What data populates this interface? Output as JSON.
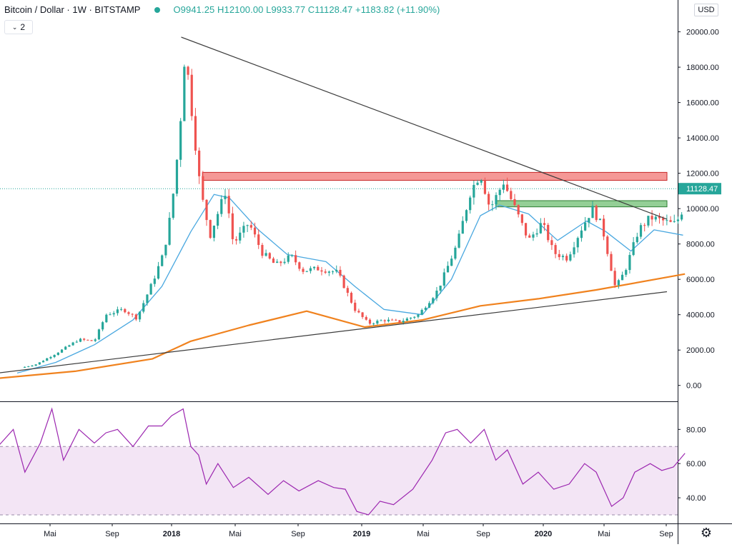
{
  "header": {
    "symbol": "Bitcoin / Dollar · 1W · BITSTAMP",
    "ohlc": {
      "open": "O9941.25",
      "high": "H12100.00",
      "low": "L9933.77",
      "close": "C11128.47",
      "change": "+1183.82 (+11.90%)"
    },
    "studies_count": "2"
  },
  "currency_label": "USD",
  "settings_icon": "gear-icon",
  "colors": {
    "up": "#26a69a",
    "down": "#ef5350",
    "ma_short": "#4aa8e0",
    "ma_long": "#f0821e",
    "trendline": "#3c3c3c",
    "rsi": "#9c27b0",
    "rsi_band": "#f3e5f5",
    "resistance_zone": "#ef5350",
    "support_zone": "#4caf50",
    "last_price": "#26a69a"
  },
  "chart_data": [
    {
      "type": "candlestick",
      "title": "Bitcoin / Dollar · 1W · BITSTAMP",
      "x_ticks": [
        "Mai",
        "Sep",
        "2018",
        "Mai",
        "Sep",
        "2019",
        "Mai",
        "Sep",
        "2020",
        "Mai",
        "Sep"
      ],
      "y_ticks": [
        "0.00",
        "2000.00",
        "4000.00",
        "6000.00",
        "8000.00",
        "10000.00",
        "12000.00",
        "14000.00",
        "16000.00",
        "18000.00",
        "20000.00"
      ],
      "ylim": [
        -900,
        21800
      ],
      "last_price": 11128.47,
      "last_price_label": "11128.47",
      "price_path": [
        [
          2017.12,
          1000
        ],
        [
          2017.2,
          1200
        ],
        [
          2017.3,
          1800
        ],
        [
          2017.42,
          2600
        ],
        [
          2017.5,
          2500
        ],
        [
          2017.56,
          4000
        ],
        [
          2017.65,
          4300
        ],
        [
          2017.72,
          3800
        ],
        [
          2017.8,
          5800
        ],
        [
          2017.86,
          7500
        ],
        [
          2017.9,
          10000
        ],
        [
          2017.94,
          14000
        ],
        [
          2017.97,
          19000
        ],
        [
          2018.02,
          14000
        ],
        [
          2018.05,
          11000
        ],
        [
          2018.1,
          8500
        ],
        [
          2018.18,
          11000
        ],
        [
          2018.22,
          8000
        ],
        [
          2018.3,
          9200
        ],
        [
          2018.37,
          7500
        ],
        [
          2018.44,
          6800
        ],
        [
          2018.52,
          7300
        ],
        [
          2018.58,
          6500
        ],
        [
          2018.66,
          6600
        ],
        [
          2018.76,
          6400
        ],
        [
          2018.85,
          4300
        ],
        [
          2018.92,
          3500
        ],
        [
          2019.0,
          3700
        ],
        [
          2019.08,
          3600
        ],
        [
          2019.18,
          4000
        ],
        [
          2019.28,
          5400
        ],
        [
          2019.38,
          8000
        ],
        [
          2019.45,
          11000
        ],
        [
          2019.5,
          12000
        ],
        [
          2019.55,
          10000
        ],
        [
          2019.62,
          11500
        ],
        [
          2019.68,
          10000
        ],
        [
          2019.75,
          8200
        ],
        [
          2019.82,
          9200
        ],
        [
          2019.88,
          7500
        ],
        [
          2019.95,
          7200
        ],
        [
          2020.02,
          8800
        ],
        [
          2020.08,
          10000
        ],
        [
          2020.13,
          9000
        ],
        [
          2020.17,
          7000
        ],
        [
          2020.2,
          5500
        ],
        [
          2020.25,
          6500
        ],
        [
          2020.32,
          8800
        ],
        [
          2020.38,
          9500
        ],
        [
          2020.45,
          9300
        ],
        [
          2020.5,
          9100
        ],
        [
          2020.54,
          9600
        ],
        [
          2020.56,
          11128
        ]
      ],
      "ma_short": [
        [
          2017.1,
          700
        ],
        [
          2017.3,
          1300
        ],
        [
          2017.5,
          2300
        ],
        [
          2017.7,
          3700
        ],
        [
          2017.85,
          5600
        ],
        [
          2018.0,
          8700
        ],
        [
          2018.12,
          10800
        ],
        [
          2018.2,
          10600
        ],
        [
          2018.35,
          8800
        ],
        [
          2018.5,
          7400
        ],
        [
          2018.7,
          7000
        ],
        [
          2018.85,
          5600
        ],
        [
          2019.0,
          4300
        ],
        [
          2019.2,
          4000
        ],
        [
          2019.35,
          6000
        ],
        [
          2019.5,
          9600
        ],
        [
          2019.6,
          10200
        ],
        [
          2019.75,
          9700
        ],
        [
          2019.9,
          8200
        ],
        [
          2020.05,
          9300
        ],
        [
          2020.15,
          8700
        ],
        [
          2020.28,
          7600
        ],
        [
          2020.4,
          8800
        ],
        [
          2020.55,
          8500
        ]
      ],
      "ma_long": [
        [
          2017.0,
          400
        ],
        [
          2017.4,
          800
        ],
        [
          2017.8,
          1500
        ],
        [
          2018.0,
          2500
        ],
        [
          2018.3,
          3400
        ],
        [
          2018.6,
          4200
        ],
        [
          2018.9,
          3300
        ],
        [
          2019.2,
          3700
        ],
        [
          2019.5,
          4500
        ],
        [
          2019.8,
          4900
        ],
        [
          2020.1,
          5400
        ],
        [
          2020.56,
          6300
        ]
      ],
      "trendlines": [
        {
          "from": [
            2017.95,
            19700
          ],
          "to": [
            2020.6,
            9400
          ]
        },
        {
          "from": [
            2017.0,
            700
          ],
          "to": [
            2020.6,
            5300
          ]
        }
      ],
      "zones": [
        {
          "name": "resistance",
          "from": [
            2018.06,
            11600
          ],
          "to": [
            2020.6,
            12050
          ]
        },
        {
          "name": "support",
          "from": [
            2019.58,
            10100
          ],
          "to": [
            2020.6,
            10450
          ]
        }
      ]
    },
    {
      "type": "line",
      "title": "",
      "y_ticks": [
        "40.00",
        "60.00",
        "80.00"
      ],
      "ylim": [
        25,
        96
      ],
      "band": [
        30,
        70
      ],
      "points": [
        [
          2017.0,
          70
        ],
        [
          2017.08,
          80
        ],
        [
          2017.14,
          55
        ],
        [
          2017.22,
          72
        ],
        [
          2017.28,
          92
        ],
        [
          2017.34,
          62
        ],
        [
          2017.42,
          80
        ],
        [
          2017.5,
          72
        ],
        [
          2017.56,
          78
        ],
        [
          2017.62,
          80
        ],
        [
          2017.7,
          70
        ],
        [
          2017.78,
          82
        ],
        [
          2017.85,
          82
        ],
        [
          2017.9,
          88
        ],
        [
          2017.96,
          92
        ],
        [
          2018.0,
          70
        ],
        [
          2018.04,
          65
        ],
        [
          2018.08,
          48
        ],
        [
          2018.14,
          60
        ],
        [
          2018.22,
          46
        ],
        [
          2018.3,
          52
        ],
        [
          2018.4,
          42
        ],
        [
          2018.48,
          50
        ],
        [
          2018.56,
          44
        ],
        [
          2018.66,
          50
        ],
        [
          2018.74,
          46
        ],
        [
          2018.8,
          45
        ],
        [
          2018.86,
          32
        ],
        [
          2018.92,
          30
        ],
        [
          2018.98,
          38
        ],
        [
          2019.05,
          36
        ],
        [
          2019.15,
          45
        ],
        [
          2019.25,
          62
        ],
        [
          2019.32,
          78
        ],
        [
          2019.38,
          80
        ],
        [
          2019.45,
          72
        ],
        [
          2019.52,
          80
        ],
        [
          2019.58,
          62
        ],
        [
          2019.64,
          68
        ],
        [
          2019.72,
          48
        ],
        [
          2019.8,
          55
        ],
        [
          2019.88,
          45
        ],
        [
          2019.96,
          48
        ],
        [
          2020.04,
          60
        ],
        [
          2020.1,
          55
        ],
        [
          2020.14,
          45
        ],
        [
          2020.18,
          35
        ],
        [
          2020.24,
          40
        ],
        [
          2020.3,
          55
        ],
        [
          2020.38,
          60
        ],
        [
          2020.44,
          56
        ],
        [
          2020.5,
          58
        ],
        [
          2020.56,
          66
        ]
      ]
    }
  ]
}
